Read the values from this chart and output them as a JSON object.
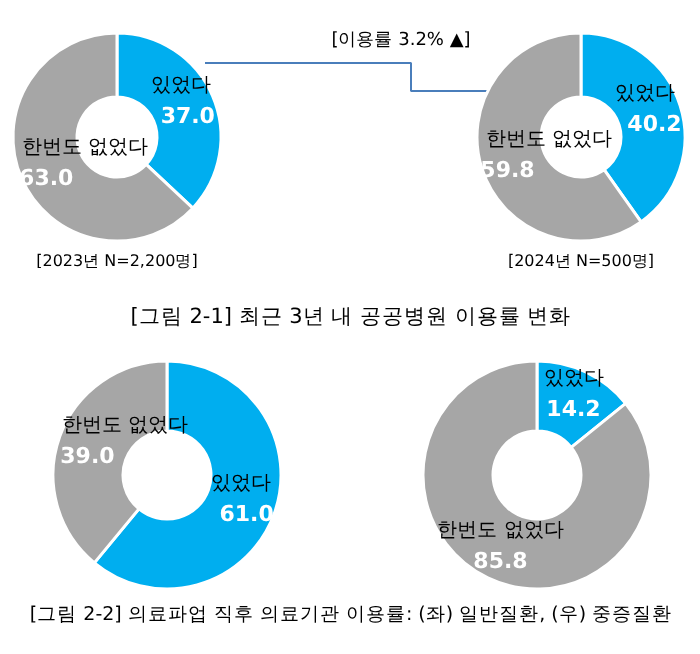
{
  "chart_data": [
    {
      "type": "donut",
      "title": "[그림 2-1] 최근 3년 내 공공병원 이용률 변화",
      "categories": [
        "있었다",
        "한번도 없었다"
      ],
      "values": [
        37.0,
        63.0
      ],
      "value_labels": [
        "37.0",
        "63.0"
      ],
      "colors": [
        "#00aeef",
        "#a6a6a6"
      ],
      "annotations": [
        "[2023년 N=2,200명]",
        "[이용률 3.2% ▲]"
      ]
    },
    {
      "type": "donut",
      "categories": [
        "있었다",
        "한번도 없었다"
      ],
      "values": [
        40.2,
        59.8
      ],
      "value_labels": [
        "40.2",
        "59.8"
      ],
      "colors": [
        "#00aeef",
        "#a6a6a6"
      ],
      "annotations": [
        "[2024년 N=500명]"
      ]
    },
    {
      "type": "donut",
      "title": "[그림 2-2] 의료파업 직후 의료기관 이용률: (좌) 일반질환, (우) 중증질환",
      "categories": [
        "있었다",
        "한번도 없었다"
      ],
      "values": [
        61.0,
        39.0
      ],
      "value_labels": [
        "61.0",
        "39.0"
      ],
      "colors": [
        "#00aeef",
        "#a6a6a6"
      ]
    },
    {
      "type": "donut",
      "categories": [
        "있었다",
        "한번도 없었다"
      ],
      "values": [
        14.2,
        85.8
      ],
      "value_labels": [
        "14.2",
        "85.8"
      ],
      "colors": [
        "#00aeef",
        "#a6a6a6"
      ]
    }
  ]
}
